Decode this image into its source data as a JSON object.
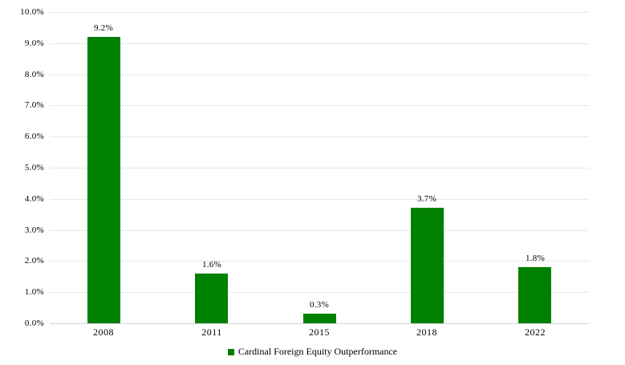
{
  "chart_data": {
    "type": "bar",
    "title": "",
    "xlabel": "",
    "ylabel": "",
    "categories": [
      "2008",
      "2011",
      "2015",
      "2018",
      "2022"
    ],
    "values": [
      9.2,
      1.6,
      0.3,
      3.7,
      1.8
    ],
    "value_labels": [
      "9.2%",
      "1.6%",
      "0.3%",
      "3.7%",
      "1.8%"
    ],
    "ylim": [
      0,
      10
    ],
    "y_ticks": [
      0,
      1,
      2,
      3,
      4,
      5,
      6,
      7,
      8,
      9,
      10
    ],
    "y_tick_labels": [
      "0.0%",
      "1.0%",
      "2.0%",
      "3.0%",
      "4.0%",
      "5.0%",
      "6.0%",
      "7.0%",
      "8.0%",
      "9.0%",
      "10.0%"
    ],
    "grid": "horizontal",
    "legend_position": "bottom-center",
    "legend": {
      "label": "Cardinal Foreign Equity Outperformance"
    },
    "colors": {
      "bar": "#008000",
      "gridline": "#e8e8e8",
      "axis_line": "#d4d4d4",
      "text": "#000000",
      "background": "#ffffff"
    }
  }
}
